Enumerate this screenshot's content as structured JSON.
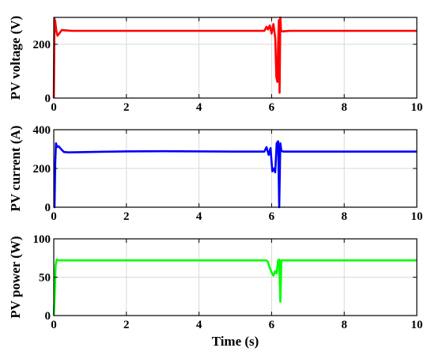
{
  "chart_data": [
    {
      "type": "line",
      "ylabel": "PV voltage (V)",
      "xlabel": "",
      "xlim": [
        0,
        10
      ],
      "ylim": [
        0,
        300
      ],
      "xticks": [
        0,
        2,
        4,
        6,
        8,
        10
      ],
      "yticks": [
        0,
        200
      ],
      "ytick_labels": [
        "0",
        "200"
      ],
      "grid": true,
      "color": "#ff0000",
      "series": [
        {
          "x": [
            0,
            0.02,
            0.04,
            0.07,
            0.1,
            0.15,
            0.22,
            0.3,
            0.5,
            1,
            2,
            3,
            4,
            5,
            5.8,
            5.86,
            5.9,
            5.95,
            6.0,
            6.05,
            6.1,
            6.13,
            6.16,
            6.18,
            6.2,
            6.22,
            6.24,
            6.26,
            6.3,
            6.5,
            7,
            8,
            9,
            10
          ],
          "y": [
            0,
            295,
            285,
            250,
            232,
            240,
            253,
            252,
            250,
            250,
            250,
            250,
            250,
            250,
            250,
            265,
            255,
            270,
            240,
            275,
            225,
            80,
            60,
            200,
            290,
            20,
            300,
            250,
            248,
            250,
            250,
            250,
            250,
            250
          ]
        }
      ]
    },
    {
      "type": "line",
      "ylabel": "PV current (A)",
      "xlabel": "",
      "xlim": [
        0,
        10
      ],
      "ylim": [
        0,
        400
      ],
      "xticks": [
        0,
        2,
        4,
        6,
        8,
        10
      ],
      "yticks": [
        0,
        200,
        400
      ],
      "ytick_labels": [
        "0",
        "200",
        "400"
      ],
      "grid": true,
      "color": "#0000ff",
      "series": [
        {
          "x": [
            0,
            0.02,
            0.04,
            0.06,
            0.09,
            0.13,
            0.2,
            0.28,
            0.4,
            1,
            2,
            3,
            4,
            5,
            5.8,
            5.86,
            5.92,
            5.97,
            6.02,
            6.06,
            6.1,
            6.14,
            6.18,
            6.21,
            6.24,
            6.27,
            6.3,
            6.35,
            7,
            8,
            9,
            10
          ],
          "y": [
            0,
            0,
            230,
            330,
            310,
            315,
            300,
            285,
            283,
            285,
            288,
            289,
            288,
            287,
            287,
            310,
            270,
            305,
            185,
            200,
            180,
            330,
            340,
            0,
            330,
            290,
            288,
            287,
            287,
            287,
            287,
            287
          ]
        }
      ]
    },
    {
      "type": "line",
      "ylabel": "PV power (W)",
      "xlabel": "Time (s)",
      "xlim": [
        0,
        10
      ],
      "ylim": [
        0,
        100
      ],
      "xticks": [
        0,
        2,
        4,
        6,
        8,
        10
      ],
      "yticks": [
        0,
        50,
        100
      ],
      "ytick_labels": [
        "0",
        "50",
        "100"
      ],
      "grid": true,
      "color": "#00ff00",
      "series": [
        {
          "x": [
            0,
            0.02,
            0.05,
            0.08,
            0.12,
            0.2,
            0.3,
            1,
            2,
            3,
            4,
            5,
            5.85,
            5.9,
            5.95,
            6.0,
            6.05,
            6.1,
            6.14,
            6.18,
            6.21,
            6.24,
            6.27,
            6.3,
            6.4,
            7,
            8,
            9,
            10
          ],
          "y": [
            0,
            20,
            65,
            73,
            72,
            72,
            72,
            72,
            72,
            72,
            72,
            72,
            72,
            70,
            62,
            56,
            52,
            58,
            55,
            72,
            73,
            18,
            72,
            72,
            72,
            72,
            72,
            72,
            72
          ]
        }
      ]
    }
  ]
}
